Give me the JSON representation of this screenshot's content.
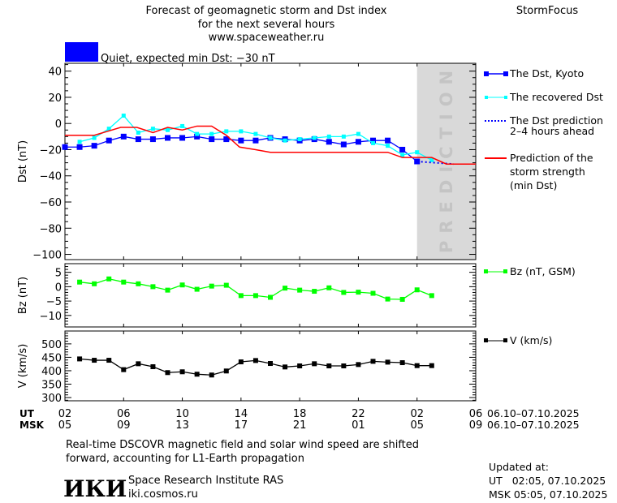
{
  "header": {
    "title_lines": [
      "Forecast of geomagnetic storm and Dst index",
      "for the next several hours",
      "www.spaceweather.ru"
    ],
    "brand": "StormFocus",
    "status_text": "Quiet, expected min Dst: −30 nT",
    "status_color": "#0000ff"
  },
  "legend": {
    "dst_kyoto": "The Dst, Kyoto",
    "recovered": "The recovered Dst",
    "prediction_lines": [
      "The Dst prediction",
      "2–4 hours ahead"
    ],
    "storm_lines": [
      "Prediction of the",
      "storm strength",
      "(min Dst)"
    ],
    "bz": "Bz (nT, GSM)",
    "v": "V (km/s)"
  },
  "prediction_label": "PREDICTION",
  "xaxis": {
    "ut_label": "UT",
    "msk_label": "MSK",
    "ut_ticks": [
      "02",
      "06",
      "10",
      "14",
      "18",
      "22",
      "02",
      "06"
    ],
    "msk_ticks": [
      "05",
      "09",
      "13",
      "17",
      "21",
      "01",
      "05",
      "09"
    ],
    "ut_range": "06.10–07.10.2025",
    "msk_range": "06.10–07.10.2025"
  },
  "footer": {
    "note_lines": [
      "Real-time DSCOVR magnetic field and solar wind speed are shifted",
      "forward, accounting for L1-Earth propagation"
    ],
    "logo_text": "ИКИ",
    "institute": "Space Research Institute RAS",
    "site": "iki.cosmos.ru",
    "updated_label": "Updated at:",
    "updated_ut": "UT   02:05, 07.10.2025",
    "updated_msk": "MSK 05:05, 07.10.2025"
  },
  "chart_data": [
    {
      "type": "line",
      "ylabel": "Dst (nT)",
      "ylim": [
        -104,
        46
      ],
      "yticks": [
        40,
        20,
        0,
        -20,
        -40,
        -60,
        -80,
        -100
      ],
      "x_hours_from_02UT_06.10": [
        0,
        28
      ],
      "prediction_region_start_hour": 24,
      "series": [
        {
          "name": "The Dst, Kyoto",
          "color": "#0000ff",
          "x": [
            0,
            1,
            2,
            3,
            4,
            5,
            6,
            7,
            8,
            9,
            10,
            11,
            12,
            13,
            14,
            15,
            16,
            17,
            18,
            19,
            20,
            21,
            22,
            23,
            24
          ],
          "values": [
            -18,
            -18,
            -17,
            -13,
            -10,
            -12,
            -12,
            -11,
            -11,
            -10,
            -12,
            -12,
            -13,
            -13,
            -11,
            -12,
            -13,
            -12,
            -14,
            -16,
            -14,
            -13,
            -13,
            -20,
            -29
          ]
        },
        {
          "name": "The recovered Dst",
          "color": "#00ffff",
          "x": [
            1,
            2,
            3,
            4,
            5,
            6,
            7,
            8,
            9,
            10,
            11,
            12,
            13,
            14,
            15,
            16,
            17,
            18,
            19,
            20,
            21,
            22,
            23,
            24,
            25
          ],
          "values": [
            -14,
            -11,
            -4,
            6,
            -7,
            -4,
            -5,
            -2,
            -8,
            -8,
            -6,
            -6,
            -8,
            -11,
            -13,
            -12,
            -11,
            -10,
            -10,
            -8,
            -15,
            -17,
            -24,
            -22,
            -28
          ]
        },
        {
          "name": "The Dst prediction 2–4 hours ahead",
          "color": "#0000ff",
          "x": [
            24,
            26.5
          ],
          "values": [
            -29,
            -31
          ]
        },
        {
          "name": "Prediction of the storm strength (min Dst)",
          "color": "#ff0000",
          "x": [
            0,
            2,
            3.8,
            4.9,
            6,
            7,
            8,
            9,
            10,
            11,
            11.9,
            13,
            14,
            15,
            22,
            23,
            25,
            26,
            28
          ],
          "values": [
            -9,
            -9,
            -3,
            -3,
            -7,
            -3,
            -5,
            -2,
            -2,
            -9,
            -18,
            -20,
            -22,
            -22,
            -22,
            -26,
            -26,
            -31,
            -31
          ]
        }
      ]
    },
    {
      "type": "line",
      "ylabel": "Bz (nT)",
      "ylim": [
        -14,
        8
      ],
      "yticks": [
        5,
        0,
        -5,
        -10
      ],
      "series": [
        {
          "name": "Bz (nT, GSM)",
          "color": "#00ff00",
          "x": [
            1,
            2,
            3,
            4,
            5,
            6,
            7,
            8,
            9,
            10,
            11,
            12,
            13,
            14,
            15,
            16,
            17,
            18,
            19,
            20,
            21,
            22,
            23,
            24,
            25
          ],
          "values": [
            1.6,
            1.0,
            2.7,
            1.6,
            1.0,
            0,
            -1.2,
            0.6,
            -0.9,
            0.2,
            0.5,
            -3.1,
            -3.1,
            -3.7,
            -0.5,
            -1.2,
            -1.6,
            -0.4,
            -2.0,
            -1.9,
            -2.3,
            -4.3,
            -4.4,
            -1.1,
            -3.1
          ]
        }
      ]
    },
    {
      "type": "line",
      "ylabel": "V (km/s)",
      "ylim": [
        288,
        548
      ],
      "yticks": [
        500,
        450,
        400,
        350,
        300
      ],
      "series": [
        {
          "name": "V (km/s)",
          "color": "#000000",
          "x": [
            1,
            2,
            3,
            4,
            5,
            6,
            7,
            8,
            9,
            10,
            11,
            12,
            13,
            14,
            15,
            16,
            17,
            18,
            19,
            20,
            21,
            22,
            23,
            24,
            25
          ],
          "values": [
            444,
            439,
            439,
            404,
            426,
            415,
            393,
            396,
            387,
            384,
            399,
            433,
            438,
            427,
            414,
            418,
            426,
            418,
            418,
            423,
            435,
            432,
            430,
            419,
            419
          ]
        }
      ]
    }
  ]
}
